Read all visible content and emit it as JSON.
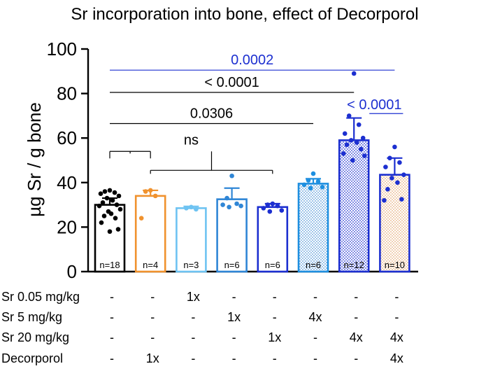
{
  "chart_data": {
    "type": "bar",
    "title": "Sr incorporation into bone, effect of Decorporol",
    "ylabel": "µg Sr / g bone",
    "xlabel": "",
    "ylim": [
      0,
      100
    ],
    "yticks": [
      0,
      20,
      40,
      60,
      80,
      100
    ],
    "grid": false,
    "groups": [
      {
        "mean": 30,
        "error": 3,
        "n_label": "n=18",
        "color": "#000000",
        "fill": "none",
        "points": [
          36.5,
          36,
          35.5,
          35,
          34,
          33,
          32,
          31,
          30,
          29.5,
          28,
          27,
          26,
          25,
          24,
          22,
          19,
          18
        ]
      },
      {
        "mean": 34,
        "error": 2.5,
        "n_label": "n=4",
        "color": "#f0922e",
        "fill": "none",
        "points": [
          36.5,
          36,
          34,
          24
        ]
      },
      {
        "mean": 28.5,
        "error": 0.8,
        "n_label": "n=3",
        "color": "#6ec3f2",
        "fill": "none",
        "points": [
          29,
          28.5,
          28
        ]
      },
      {
        "mean": 32.5,
        "error": 5,
        "n_label": "n=6",
        "color": "#2f86d6",
        "fill": "none",
        "points": [
          43,
          33,
          30.5,
          30,
          29.5,
          29
        ]
      },
      {
        "mean": 29,
        "error": 1.5,
        "n_label": "n=6",
        "color": "#1c2fd0",
        "fill": "none",
        "points": [
          30.5,
          30,
          29.5,
          28.5,
          27.5,
          27
        ]
      },
      {
        "mean": 39.5,
        "error": 2.2,
        "n_label": "n=6",
        "color": "#1e8fe0",
        "fill": "dots-blue",
        "points": [
          44,
          41,
          40.5,
          39,
          38,
          37.5
        ]
      },
      {
        "mean": 59,
        "error": 10,
        "n_label": "n=12",
        "color": "#1c2fd0",
        "fill": "dots-navy",
        "points": [
          89,
          70,
          66,
          62,
          60,
          59,
          58,
          57,
          55,
          53,
          52,
          50
        ]
      },
      {
        "mean": 43.5,
        "error": 7.5,
        "n_label": "n=10",
        "color": "#1c2fd0",
        "fill": "dots-orange",
        "points": [
          56,
          51,
          49,
          47,
          43.5,
          42,
          40,
          37,
          32.5,
          32
        ]
      }
    ],
    "comparisons": [
      {
        "label": "0.0002",
        "color": "#1c2fd0",
        "y": 90.5,
        "from": 0,
        "to": 7,
        "type": "line",
        "underline": false
      },
      {
        "label": "< 0.0001",
        "color": "#000000",
        "y": 80.5,
        "from": 0,
        "to": 6,
        "type": "line",
        "underline": false
      },
      {
        "label": "< 0.0001",
        "color": "#1c2fd0",
        "y": 71,
        "from": 6,
        "to": 7,
        "type": "line",
        "underline": true
      },
      {
        "label": "0.0306",
        "color": "#000000",
        "y": 66.5,
        "from": 0,
        "to": 5,
        "type": "line",
        "underline": false
      },
      {
        "label": "ns",
        "color": "#000000",
        "y": 54,
        "from": 0,
        "to": 4,
        "type": "bracket",
        "underline": false
      }
    ],
    "treatment_table": {
      "rows": [
        {
          "label": "Sr 0.05 mg/kg",
          "cells": [
            "-",
            "-",
            "1x",
            "-",
            "-",
            "-",
            "-",
            "-"
          ]
        },
        {
          "label": "Sr 5 mg/kg",
          "cells": [
            "-",
            "-",
            "-",
            "1x",
            "-",
            "4x",
            "-",
            "-"
          ]
        },
        {
          "label": "Sr 20 mg/kg",
          "cells": [
            "-",
            "-",
            "-",
            "-",
            "1x",
            "-",
            "4x",
            "4x"
          ]
        },
        {
          "label": "Decorporol",
          "cells": [
            "-",
            "1x",
            "-",
            "-",
            "-",
            "-",
            "-",
            "4x"
          ]
        }
      ]
    }
  }
}
